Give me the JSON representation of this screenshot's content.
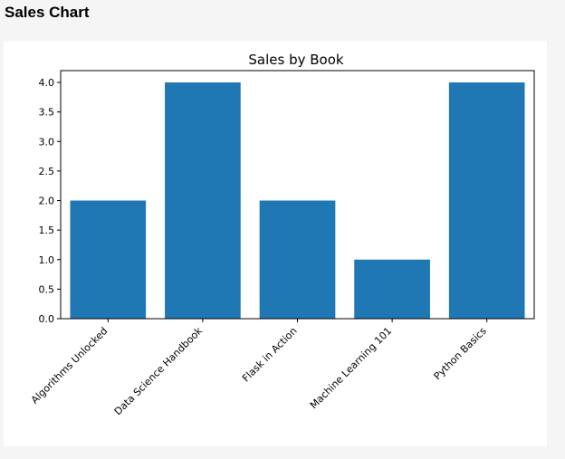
{
  "page": {
    "title": "Sales Chart"
  },
  "chart_data": {
    "type": "bar",
    "title": "Sales by Book",
    "xlabel": "",
    "ylabel": "",
    "categories": [
      "Algorithms Unlocked",
      "Data Science Handbook",
      "Flask in Action",
      "Machine Learning 101",
      "Python Basics"
    ],
    "values": [
      2,
      4,
      2,
      1,
      4
    ],
    "ylim": [
      0,
      4.2
    ],
    "yticks": [
      "0.0",
      "0.5",
      "1.0",
      "1.5",
      "2.0",
      "2.5",
      "3.0",
      "3.5",
      "4.0"
    ],
    "bar_color": "#1f77b4",
    "grid": false,
    "legend": false
  }
}
